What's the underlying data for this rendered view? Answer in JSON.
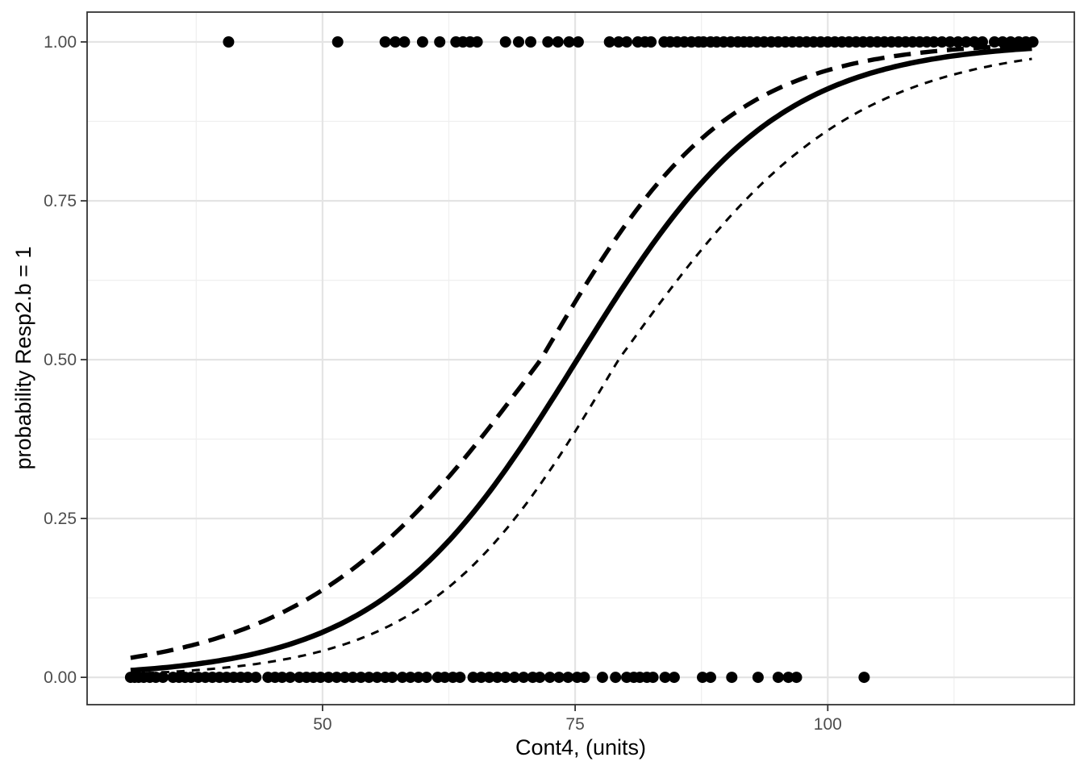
{
  "chart_data": {
    "type": "scatter",
    "title": "",
    "xlabel": "Cont4, (units)",
    "ylabel": "probability Resp2.b = 1",
    "x_domain": [
      26.7,
      124.4
    ],
    "y_domain": [
      -0.043,
      1.047
    ],
    "x_ticks": [
      {
        "value": 50,
        "label": "50"
      },
      {
        "value": 75,
        "label": "75"
      },
      {
        "value": 100,
        "label": "100"
      }
    ],
    "y_ticks": [
      {
        "value": 0.0,
        "label": "0.00"
      },
      {
        "value": 0.25,
        "label": "0.25"
      },
      {
        "value": 0.5,
        "label": "0.50"
      },
      {
        "value": 0.75,
        "label": "0.75"
      },
      {
        "value": 1.0,
        "label": "1.00"
      }
    ],
    "x_minor_ticks": [
      37.5,
      62.5,
      87.5,
      112.5
    ],
    "y_minor_ticks": [
      0.125,
      0.375,
      0.625,
      0.875
    ],
    "grid": true,
    "legend": "none",
    "series": [
      {
        "name": "observed-response-1",
        "y": 1,
        "x": [
          40.7,
          51.5,
          56.2,
          57.2,
          58.1,
          59.9,
          61.6,
          63.2,
          63.9,
          64.6,
          65.3,
          68.1,
          69.4,
          70.6,
          72.3,
          73.3,
          74.4,
          75.3,
          78.4,
          79.3,
          80.1,
          81.2,
          81.9,
          82.5,
          83.8,
          84.4,
          85.1,
          85.8,
          86.5,
          87.2,
          87.7,
          88.4,
          89.0,
          89.7,
          90.4,
          91.1,
          91.7,
          92.3,
          93.0,
          93.7,
          94.4,
          95.1,
          95.8,
          96.5,
          97.2,
          97.9,
          98.6,
          99.3,
          100.0,
          100.7,
          101.4,
          102.1,
          102.8,
          103.5,
          104.2,
          104.9,
          105.6,
          106.3,
          107.0,
          107.7,
          108.4,
          109.1,
          109.8,
          110.5,
          111.3,
          112.1,
          112.9,
          113.7,
          114.5,
          115.3,
          116.5,
          117.3,
          118.1,
          118.9,
          119.6,
          120.3
        ]
      },
      {
        "name": "observed-response-0",
        "y": 0,
        "x": [
          31.0,
          31.4,
          31.8,
          32.3,
          32.9,
          33.5,
          34.2,
          35.2,
          35.8,
          36.4,
          37.0,
          37.7,
          38.4,
          39.1,
          39.8,
          40.5,
          41.2,
          41.9,
          42.6,
          43.4,
          44.6,
          45.3,
          46.0,
          46.8,
          47.7,
          48.4,
          49.1,
          49.8,
          50.6,
          51.4,
          52.2,
          53.0,
          53.8,
          54.6,
          55.4,
          56.2,
          56.9,
          57.9,
          58.7,
          59.5,
          60.3,
          61.4,
          62.1,
          62.9,
          63.6,
          64.9,
          65.7,
          66.5,
          67.3,
          68.1,
          69.0,
          69.9,
          70.8,
          71.5,
          72.5,
          73.4,
          74.3,
          75.2,
          75.9,
          77.7,
          79.0,
          80.1,
          80.8,
          81.4,
          82.1,
          82.7,
          83.9,
          84.8,
          87.6,
          88.4,
          90.5,
          93.1,
          95.1,
          96.1,
          96.9,
          103.6
        ]
      }
    ],
    "curves": [
      {
        "name": "fitted-logistic-probability",
        "style": "solid",
        "model": "logistic",
        "midpoint": 75.2,
        "k_left": 0.102,
        "k_right": 0.102,
        "x_range": [
          31.0,
          120.3
        ]
      },
      {
        "name": "upper-confidence-band",
        "style": "long-dash",
        "model": "logistic",
        "midpoint": 71.6,
        "k_left": 0.085,
        "k_right": 0.108,
        "x_range": [
          31.0,
          120.3
        ]
      },
      {
        "name": "lower-confidence-band",
        "style": "short-dash",
        "model": "logistic",
        "midpoint": 79.3,
        "k_left": 0.107,
        "k_right": 0.088,
        "x_range": [
          31.0,
          120.3
        ]
      }
    ],
    "point_radius_px": 7,
    "colors": {
      "point": "#000000",
      "curve": "#000000",
      "panel_background": "#ffffff",
      "panel_border": "#333333",
      "grid_major": "#e4e4e4",
      "grid_minor": "#efefef",
      "tick_mark": "#333333",
      "tick_label": "#4d4d4d",
      "axis_title": "#000000"
    }
  }
}
